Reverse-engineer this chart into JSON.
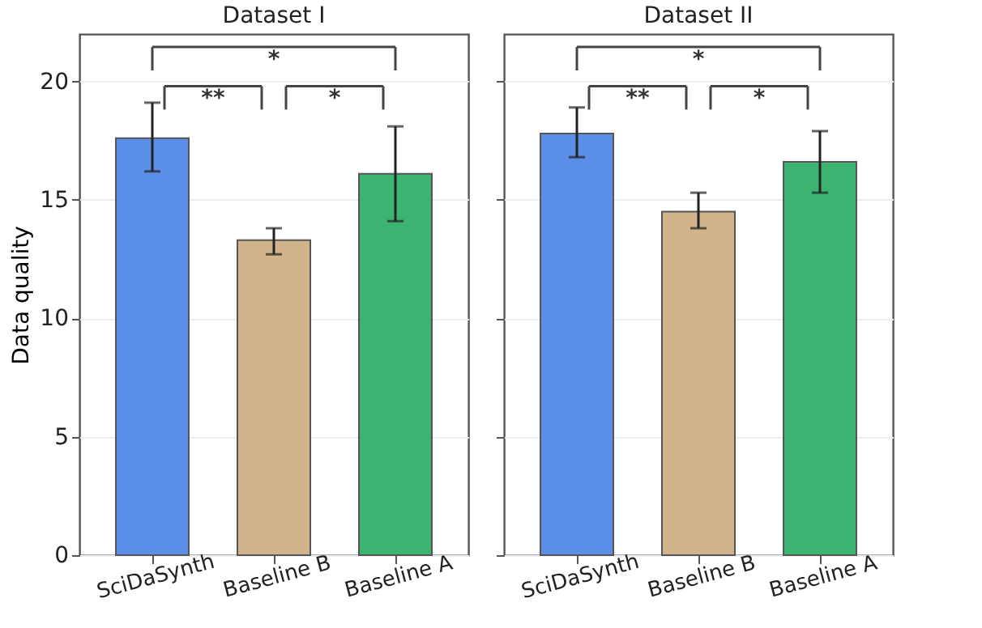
{
  "chart_data": [
    {
      "type": "bar",
      "title": "Dataset I",
      "ylabel": "Data quality",
      "categories": [
        "SciDaSynth",
        "Baseline B",
        "Baseline A"
      ],
      "values": [
        17.6,
        13.3,
        16.1
      ],
      "colors": [
        "#5b8ee6",
        "#d2b48c",
        "#3cb371"
      ],
      "errors": [
        [
          16.2,
          19.1
        ],
        [
          12.7,
          13.8
        ],
        [
          14.1,
          18.1
        ]
      ],
      "ylim": [
        0,
        22
      ],
      "yticks": [
        0,
        5,
        10,
        15,
        20
      ],
      "grid": "y",
      "annotations": [
        "*",
        "**",
        "*"
      ]
    },
    {
      "type": "bar",
      "title": "Dataset II",
      "categories": [
        "SciDaSynth",
        "Baseline B",
        "Baseline A"
      ],
      "values": [
        17.8,
        14.5,
        16.6
      ],
      "colors": [
        "#5b8ee6",
        "#d2b48c",
        "#3cb371"
      ],
      "errors": [
        [
          16.8,
          18.9
        ],
        [
          13.8,
          15.3
        ],
        [
          15.3,
          17.9
        ]
      ],
      "ylim": [
        0,
        22
      ],
      "yticks": [
        0,
        5,
        10,
        15,
        20
      ],
      "grid": "y",
      "tick_labels": "x",
      "annotations": [
        "*",
        "**",
        "*"
      ]
    }
  ]
}
